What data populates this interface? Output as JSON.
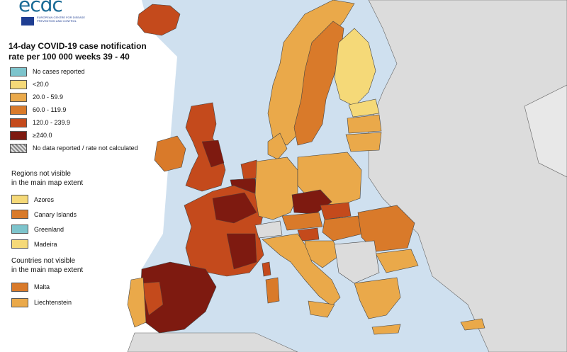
{
  "logo": {
    "text": "ecdc",
    "subtitle": "EUROPEAN CENTRE FOR DISEASE PREVENTION AND CONTROL"
  },
  "title": {
    "line1": "14-day COVID-19 case notification",
    "line2": "rate per 100 000 weeks 39 - 40"
  },
  "colors": {
    "sea": "#cfe0ef",
    "non_eu_land": "#dcdcdc",
    "no_cases": "#7dc4cc",
    "lt20": "#f5d978",
    "c20_60": "#eaa94a",
    "c60_120": "#d97a2a",
    "c120_240": "#c44a1c",
    "ge240": "#7e1a10",
    "border": "#444444"
  },
  "legend": {
    "items": [
      {
        "label": "No cases reported",
        "color": "#7dc4cc"
      },
      {
        "label": "<20.0",
        "color": "#f5d978"
      },
      {
        "label": "20.0 - 59.9",
        "color": "#eaa94a"
      },
      {
        "label": "60.0 - 119.9",
        "color": "#d97a2a"
      },
      {
        "label": "120.0 - 239.9",
        "color": "#c44a1c"
      },
      {
        "label": "≥240.0",
        "color": "#7e1a10"
      },
      {
        "label": "No data reported / rate not calculated",
        "color": "hatch"
      }
    ]
  },
  "regions_not_visible": {
    "heading_line1": "Regions not visible",
    "heading_line2": "in the main map extent",
    "items": [
      {
        "label": "Azores",
        "color": "#f5d978"
      },
      {
        "label": "Canary Islands",
        "color": "#d97a2a"
      },
      {
        "label": "Greenland",
        "color": "#7dc4cc"
      },
      {
        "label": "Madeira",
        "color": "#f5d978"
      }
    ]
  },
  "countries_not_visible": {
    "heading_line1": "Countries not visible",
    "heading_line2": "in the main map extent",
    "items": [
      {
        "label": "Malta",
        "color": "#d97a2a"
      },
      {
        "label": "Liechtenstein",
        "color": "#eaa94a"
      }
    ]
  }
}
